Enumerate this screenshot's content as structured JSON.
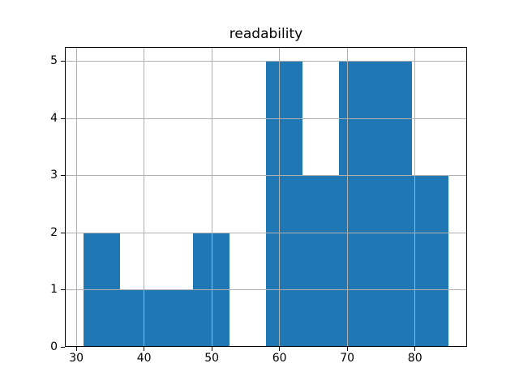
{
  "chart_data": {
    "type": "bar",
    "subtype": "histogram",
    "title": "readability",
    "bin_edges": [
      31,
      36.4,
      41.8,
      47.2,
      52.6,
      58,
      63.4,
      68.8,
      74.2,
      79.6,
      85
    ],
    "counts": [
      2,
      1,
      1,
      2,
      0,
      5,
      3,
      5,
      5,
      3
    ],
    "xticks": [
      30,
      40,
      50,
      60,
      70,
      80
    ],
    "yticks": [
      0,
      1,
      2,
      3,
      4,
      5
    ],
    "xlim": [
      28.3,
      87.7
    ],
    "ylim": [
      0,
      5.25
    ],
    "grid": true,
    "legend": false,
    "xlabel": "",
    "ylabel": "",
    "bar_color": "#1f77b4",
    "grid_color": "#b0b0b0",
    "spine_color": "#000000",
    "text_color": "#000000",
    "background_color": "#ffffff"
  }
}
